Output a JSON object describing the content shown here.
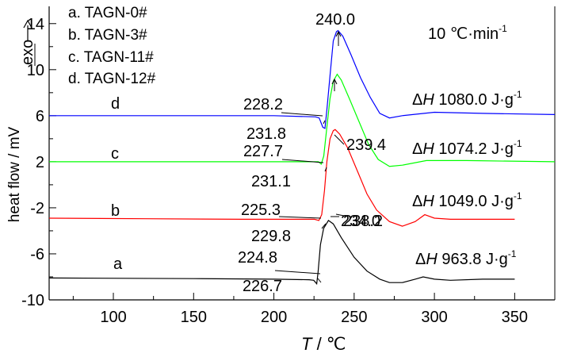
{
  "chart_data": {
    "type": "line",
    "title": "",
    "xlabel_main": "T",
    "xlabel_sep": " / ",
    "xlabel_unit": "℃",
    "ylabel": "heat flow / mV",
    "exo_label": "exo",
    "rate_label": "10 ℃·min",
    "rate_sup": "-1",
    "xlim": [
      60,
      375
    ],
    "ylim": [
      -10,
      15.5
    ],
    "xticks": [
      100,
      150,
      200,
      250,
      300,
      350
    ],
    "yticks": [
      -10,
      -6,
      -2,
      2,
      6,
      10,
      14
    ],
    "legend": [
      "a. TAGN-0#",
      "b. TAGN-3#",
      "c. TAGN-11#",
      "d. TAGN-12#"
    ],
    "series": [
      {
        "tag": "a",
        "color": "#000000",
        "points": [
          [
            60,
            -8.1
          ],
          [
            150,
            -8.15
          ],
          [
            200,
            -8.2
          ],
          [
            222,
            -8.25
          ],
          [
            224.8,
            -8.3
          ],
          [
            226.7,
            -8.6
          ],
          [
            227.5,
            -7.6
          ],
          [
            229,
            -5.2
          ],
          [
            231,
            -3.8
          ],
          [
            234,
            -3.1
          ],
          [
            237,
            -3.4
          ],
          [
            242,
            -4.6
          ],
          [
            250,
            -6.3
          ],
          [
            258,
            -7.5
          ],
          [
            266,
            -8.2
          ],
          [
            272,
            -8.5
          ],
          [
            280,
            -8.5
          ],
          [
            288,
            -8.2
          ],
          [
            293,
            -8.0
          ],
          [
            300,
            -8.2
          ],
          [
            310,
            -8.3
          ],
          [
            330,
            -8.2
          ],
          [
            350,
            -8.2
          ]
        ],
        "annotations": [
          {
            "text": "224.8"
          },
          {
            "text": "226.7"
          },
          {
            "text": "234.0"
          }
        ],
        "dh_value": "963.8 J·g"
      },
      {
        "tag": "b",
        "color": "#ff0000",
        "points": [
          [
            60,
            -2.9
          ],
          [
            120,
            -2.95
          ],
          [
            180,
            -3.0
          ],
          [
            215,
            -3.0
          ],
          [
            225.3,
            -3.0
          ],
          [
            228,
            -3.1
          ],
          [
            229.8,
            -2.6
          ],
          [
            231.5,
            -0.5
          ],
          [
            233,
            2.0
          ],
          [
            235,
            4.0
          ],
          [
            237,
            4.7
          ],
          [
            238.2,
            4.8
          ],
          [
            241,
            4.4
          ],
          [
            246,
            3.2
          ],
          [
            252,
            1.2
          ],
          [
            258,
            -0.8
          ],
          [
            264,
            -2.2
          ],
          [
            272,
            -3.2
          ],
          [
            280,
            -3.6
          ],
          [
            288,
            -3.2
          ],
          [
            294,
            -2.6
          ],
          [
            300,
            -2.9
          ],
          [
            310,
            -3.0
          ],
          [
            330,
            -3.0
          ],
          [
            350,
            -3.0
          ]
        ],
        "annotations": [
          {
            "text": "225.3"
          },
          {
            "text": "229.8"
          },
          {
            "text": "238.2"
          }
        ],
        "dh_value": "1049.0 J·g"
      },
      {
        "tag": "c",
        "color": "#00ff00",
        "points": [
          [
            60,
            2.0
          ],
          [
            130,
            2.0
          ],
          [
            200,
            2.0
          ],
          [
            226,
            2.0
          ],
          [
            227.7,
            2.0
          ],
          [
            229.5,
            1.8
          ],
          [
            231.1,
            2.5
          ],
          [
            233,
            5.0
          ],
          [
            235,
            7.5
          ],
          [
            237,
            9.0
          ],
          [
            239.4,
            9.6
          ],
          [
            242,
            9.1
          ],
          [
            247,
            7.5
          ],
          [
            253,
            5.5
          ],
          [
            259,
            3.5
          ],
          [
            265,
            2.2
          ],
          [
            272,
            1.6
          ],
          [
            280,
            1.7
          ],
          [
            295,
            2.1
          ],
          [
            320,
            2.1
          ],
          [
            375,
            2.0
          ]
        ],
        "annotations": [
          {
            "text": "227.7"
          },
          {
            "text": "231.1"
          },
          {
            "text": "239.4"
          }
        ],
        "dh_value": "1074.2 J·g"
      },
      {
        "tag": "d",
        "color": "#0000ff",
        "points": [
          [
            60,
            6.0
          ],
          [
            130,
            6.0
          ],
          [
            200,
            6.0
          ],
          [
            226,
            5.9
          ],
          [
            228.2,
            5.8
          ],
          [
            230.5,
            5.0
          ],
          [
            231.8,
            4.9
          ],
          [
            233,
            6.5
          ],
          [
            235,
            9.5
          ],
          [
            237,
            12.5
          ],
          [
            239,
            13.3
          ],
          [
            240,
            13.4
          ],
          [
            243,
            12.9
          ],
          [
            248,
            11.3
          ],
          [
            254,
            9.3
          ],
          [
            260,
            7.6
          ],
          [
            266,
            6.2
          ],
          [
            272,
            5.8
          ],
          [
            280,
            6.0
          ],
          [
            300,
            6.3
          ],
          [
            330,
            6.2
          ],
          [
            375,
            6.1
          ]
        ],
        "annotations": [
          {
            "text": "228.2"
          },
          {
            "text": "231.8"
          },
          {
            "text": "240.0"
          }
        ],
        "dh_value": "1080.0 J·g"
      }
    ],
    "dh_symbol": "ΔH",
    "dh_sup": "-1",
    "grid": false,
    "legend_position": "top-left"
  }
}
